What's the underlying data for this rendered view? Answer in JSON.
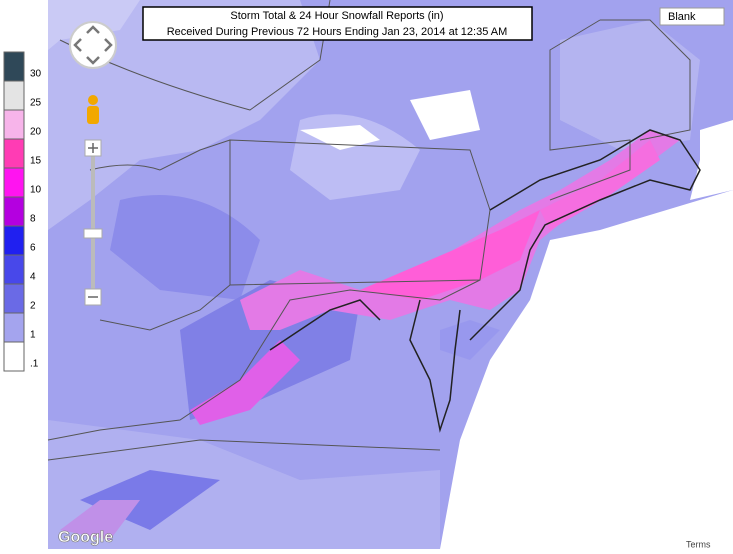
{
  "title_lines": [
    "Storm Total & 24 Hour Snowfall Reports (in)",
    "Received During Previous 72 Hours Ending Jan 23, 2014 at 12:35 AM"
  ],
  "layer_button": "Blank",
  "legend": {
    "ticks": [
      30,
      25,
      20,
      15,
      10,
      8,
      6,
      4,
      2,
      1,
      {
        "value": 0.1,
        "label": ".1"
      }
    ],
    "colors": [
      "#2f4858",
      "#e4e4e4",
      "#f7b4ea",
      "#ff3cb4",
      "#ff14f0",
      "#b400e0",
      "#2020f0",
      "#4848ea",
      "#6a6ae6",
      "#a4a4ee",
      "#ffffff"
    ]
  },
  "attribution": "Google",
  "terms": "Terms"
}
